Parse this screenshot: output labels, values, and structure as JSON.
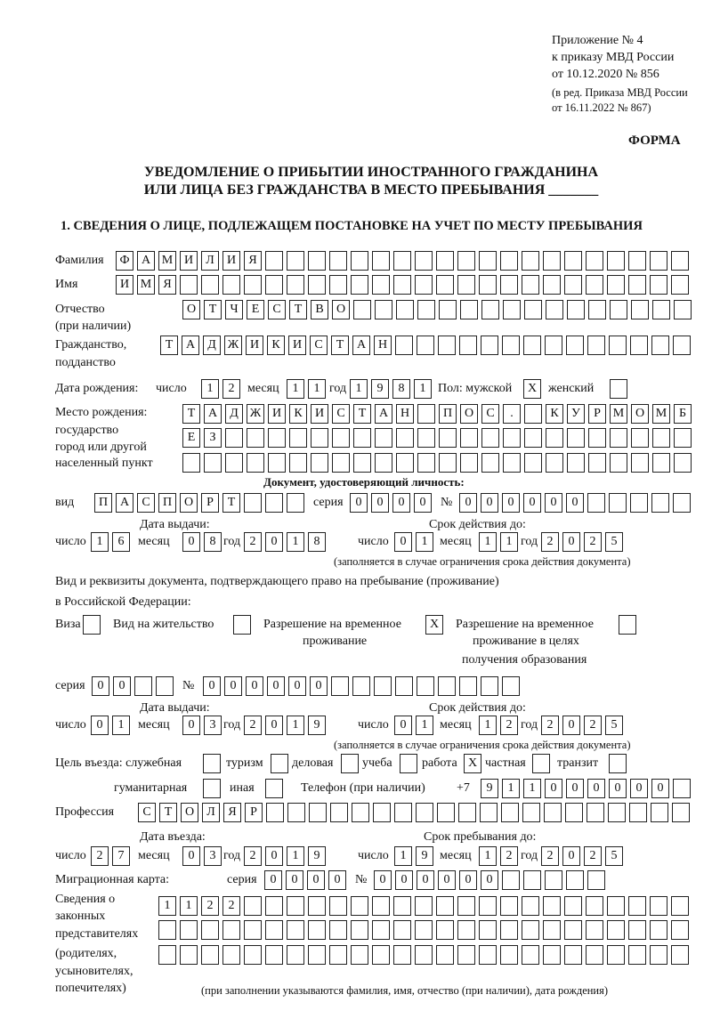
{
  "header": {
    "appendix": "Приложение № 4",
    "order": "к приказу МВД России",
    "order_date": "от 10.12.2020 № 856",
    "revision": "(в ред. Приказа МВД России",
    "revision_date": "от 16.11.2022 № 867)",
    "form_label": "ФОРМА",
    "title_line1": "УВЕДОМЛЕНИЕ О ПРИБЫТИИ ИНОСТРАННОГО ГРАЖДАНИНА",
    "title_line2": "ИЛИ ЛИЦА БЕЗ ГРАЖДАНСТВА В МЕСТО ПРЕБЫВАНИЯ _______",
    "section1": "1. СВЕДЕНИЯ О ЛИЦЕ, ПОДЛЕЖАЩЕМ ПОСТАНОВКЕ НА УЧЕТ ПО МЕСТУ ПРЕБЫВАНИЯ"
  },
  "labels": {
    "surname": "Фамилия",
    "name": "Имя",
    "patronymic": "Отчество",
    "patronymic_note": "(при наличии)",
    "citizenship": "Гражданство,",
    "citizenship2": "подданство",
    "birth_date": "Дата рождения:",
    "day": "число",
    "month": "месяц",
    "year": "год",
    "sex": "Пол: мужской",
    "female": "женский",
    "birth_place": "Место рождения:",
    "birth_place2": "государство",
    "birth_place3": "город или другой",
    "birth_place4": "населенный пункт",
    "id_doc": "Документ, удостоверяющий личность:",
    "kind": "вид",
    "series": "серия",
    "number": "№",
    "issue_date": "Дата выдачи:",
    "valid_until": "Срок действия до:",
    "valid_note": "(заполняется в случае ограничения срока действия документа)",
    "stay_doc": "Вид и реквизиты документа, подтверждающего право на пребывание (проживание)",
    "stay_doc2": "в Российской Федерации:",
    "visa": "Виза",
    "residence": "Вид на жительство",
    "temp_permit": "Разрешение на временное",
    "temp_permit2": "проживание",
    "edu_permit": "Разрешение на временное",
    "edu_permit2": "проживание в целях",
    "edu_permit3": "получения образования",
    "purpose": "Цель въезда: служебная",
    "tourism": "туризм",
    "business": "деловая",
    "study": "учеба",
    "work": "работа",
    "private": "частная",
    "transit": "транзит",
    "humanitarian": "гуманитарная",
    "other": "иная",
    "phone": "Телефон (при наличии)",
    "phone_code": "+7",
    "profession": "Профессия",
    "entry_date": "Дата въезда:",
    "stay_until": "Срок пребывания до:",
    "migration_card": "Миграционная карта:",
    "reps1": "Сведения о",
    "reps2": "законных",
    "reps3": "представителях",
    "reps4": "(родителях,",
    "reps5": "усыновителях,",
    "reps6": "попечителях)",
    "reps_note": "(при заполнении указываются фамилия, имя, отчество (при наличии), дата рождения)"
  },
  "person": {
    "surname": "ФАМИЛИЯ",
    "name": "ИМЯ",
    "patronymic": "ОТЧЕСТВО",
    "citizenship": "ТАДЖИКИСТАН",
    "birth_day": "12",
    "birth_month": "11",
    "birth_year": "1981",
    "sex_male": "X",
    "sex_female": "",
    "birth_place1": "ТАДЖИКИСТАН ПОС. КУРМОМБ",
    "birth_place2": "ЕЗ",
    "birth_place3": "",
    "id_kind": "ПАСПОРТ",
    "id_series": "0000",
    "id_number": "000000",
    "id_issue_day": "16",
    "id_issue_month": "08",
    "id_issue_year": "2018",
    "id_valid_day": "01",
    "id_valid_month": "11",
    "id_valid_year": "2025",
    "visa": "",
    "residence": "",
    "temp_permit": "X",
    "edu_permit": "",
    "stay_series": "00",
    "stay_number": "000000",
    "stay_issue_day": "01",
    "stay_issue_month": "03",
    "stay_issue_year": "2019",
    "stay_valid_day": "01",
    "stay_valid_month": "12",
    "stay_valid_year": "2025",
    "purpose_official": "",
    "purpose_tourism": "",
    "purpose_business": "",
    "purpose_study": "",
    "purpose_work": "X",
    "purpose_private": "",
    "purpose_transit": "",
    "purpose_humanitarian": "",
    "purpose_other": "",
    "phone": "911000000",
    "profession": "СТОЛЯР",
    "entry_day": "27",
    "entry_month": "03",
    "entry_year": "2019",
    "stay_day": "19",
    "stay_month": "12",
    "stay_year": "2025",
    "mig_series": "0000",
    "mig_number": "000000",
    "reps1": "1122",
    "reps2": "",
    "reps3": ""
  }
}
